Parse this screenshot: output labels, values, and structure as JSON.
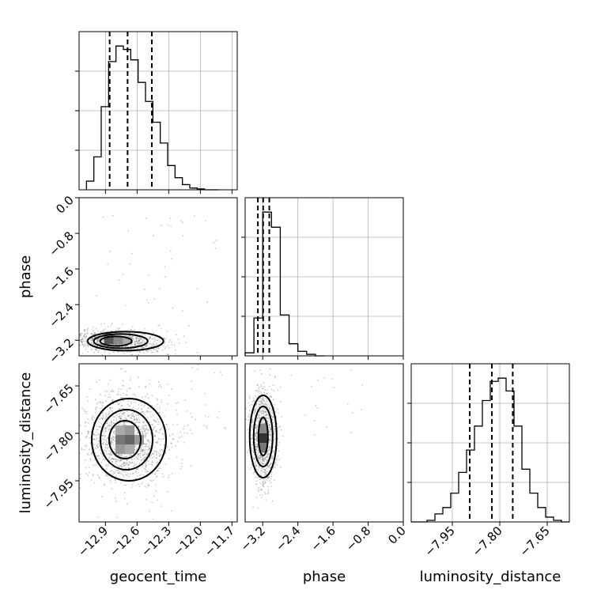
{
  "figure": {
    "type": "corner_plot",
    "parameters": [
      "geocent_time",
      "phase",
      "luminosity_distance"
    ]
  },
  "chart_data": [
    {
      "type": "histogram",
      "panel": "geocent_time",
      "xlim": [
        -13.15,
        -11.65
      ],
      "bin_edges": [
        -13.08,
        -13.01,
        -12.94,
        -12.87,
        -12.8,
        -12.73,
        -12.66,
        -12.59,
        -12.52,
        -12.45,
        -12.38,
        -12.31,
        -12.24,
        -12.17,
        -12.1,
        -12.03,
        -11.96,
        -11.89,
        -11.82
      ],
      "counts": [
        0.05,
        0.19,
        0.48,
        0.74,
        0.83,
        0.81,
        0.75,
        0.62,
        0.51,
        0.39,
        0.27,
        0.14,
        0.07,
        0.03,
        0.01,
        0.005,
        0.0,
        0.0
      ],
      "quantiles": [
        -12.86,
        -12.69,
        -12.46
      ],
      "xticks": [
        "−12.9",
        "−12.6",
        "−12.3",
        "−12.0",
        "−11.7"
      ],
      "xlabel": "geocent_time"
    },
    {
      "type": "2d_density",
      "panel": "phase vs geocent_time",
      "x": "geocent_time",
      "y": "phase",
      "xlim": [
        -13.15,
        -11.65
      ],
      "ylim": [
        -3.55,
        0.0
      ],
      "peak": {
        "x": -12.8,
        "y": -3.22
      },
      "yticks": [
        "0.0",
        "−0.8",
        "−1.6",
        "−2.4",
        "−3.2"
      ],
      "ylabel": "phase"
    },
    {
      "type": "histogram",
      "panel": "phase",
      "xlim": [
        -3.6,
        0.0
      ],
      "bin_edges": [
        -3.6,
        -3.4,
        -3.2,
        -3.0,
        -2.8,
        -2.6,
        -2.4,
        -2.2,
        -2.0,
        -1.8
      ],
      "counts": [
        0.02,
        0.25,
        0.95,
        0.85,
        0.27,
        0.08,
        0.03,
        0.01,
        0.0
      ],
      "quantiles": [
        -3.31,
        -3.19,
        -3.05
      ],
      "xticks": [
        "−3.2",
        "−2.4",
        "−1.6",
        "−0.8",
        "0.0"
      ],
      "xlabel": "phase"
    },
    {
      "type": "2d_density",
      "panel": "luminosity_distance vs geocent_time",
      "x": "geocent_time",
      "y": "luminosity_distance",
      "xlim": [
        -13.15,
        -11.65
      ],
      "ylim": [
        -8.08,
        -7.58
      ],
      "peak": {
        "x": -12.7,
        "y": -7.82
      },
      "yticks": [
        "−7.65",
        "−7.80",
        "−7.95"
      ],
      "ylabel": "luminosity_distance"
    },
    {
      "type": "2d_density",
      "panel": "luminosity_distance vs phase",
      "x": "phase",
      "y": "luminosity_distance",
      "xlim": [
        -3.6,
        0.0
      ],
      "ylim": [
        -8.08,
        -7.58
      ],
      "peak": {
        "x": -3.19,
        "y": -7.81
      },
      "xticks": [
        "−3.2",
        "−2.4",
        "−1.6",
        "−0.8",
        "0.0"
      ]
    },
    {
      "type": "histogram",
      "panel": "luminosity_distance",
      "xlim": [
        -8.08,
        -7.58
      ],
      "bin_edges": [
        -8.08,
        -8.055,
        -8.03,
        -8.005,
        -7.98,
        -7.955,
        -7.93,
        -7.905,
        -7.88,
        -7.855,
        -7.83,
        -7.805,
        -7.78,
        -7.755,
        -7.73,
        -7.705,
        -7.68,
        -7.655,
        -7.63,
        -7.605,
        -7.58
      ],
      "counts": [
        0.0,
        0.0,
        0.01,
        0.05,
        0.09,
        0.18,
        0.31,
        0.45,
        0.6,
        0.76,
        0.88,
        0.9,
        0.82,
        0.6,
        0.33,
        0.18,
        0.09,
        0.03,
        0.01,
        0.0
      ],
      "quantiles": [
        -7.895,
        -7.825,
        -7.759
      ],
      "xticks": [
        "−7.95",
        "−7.80",
        "−7.65"
      ],
      "xlabel": "luminosity_distance"
    }
  ]
}
